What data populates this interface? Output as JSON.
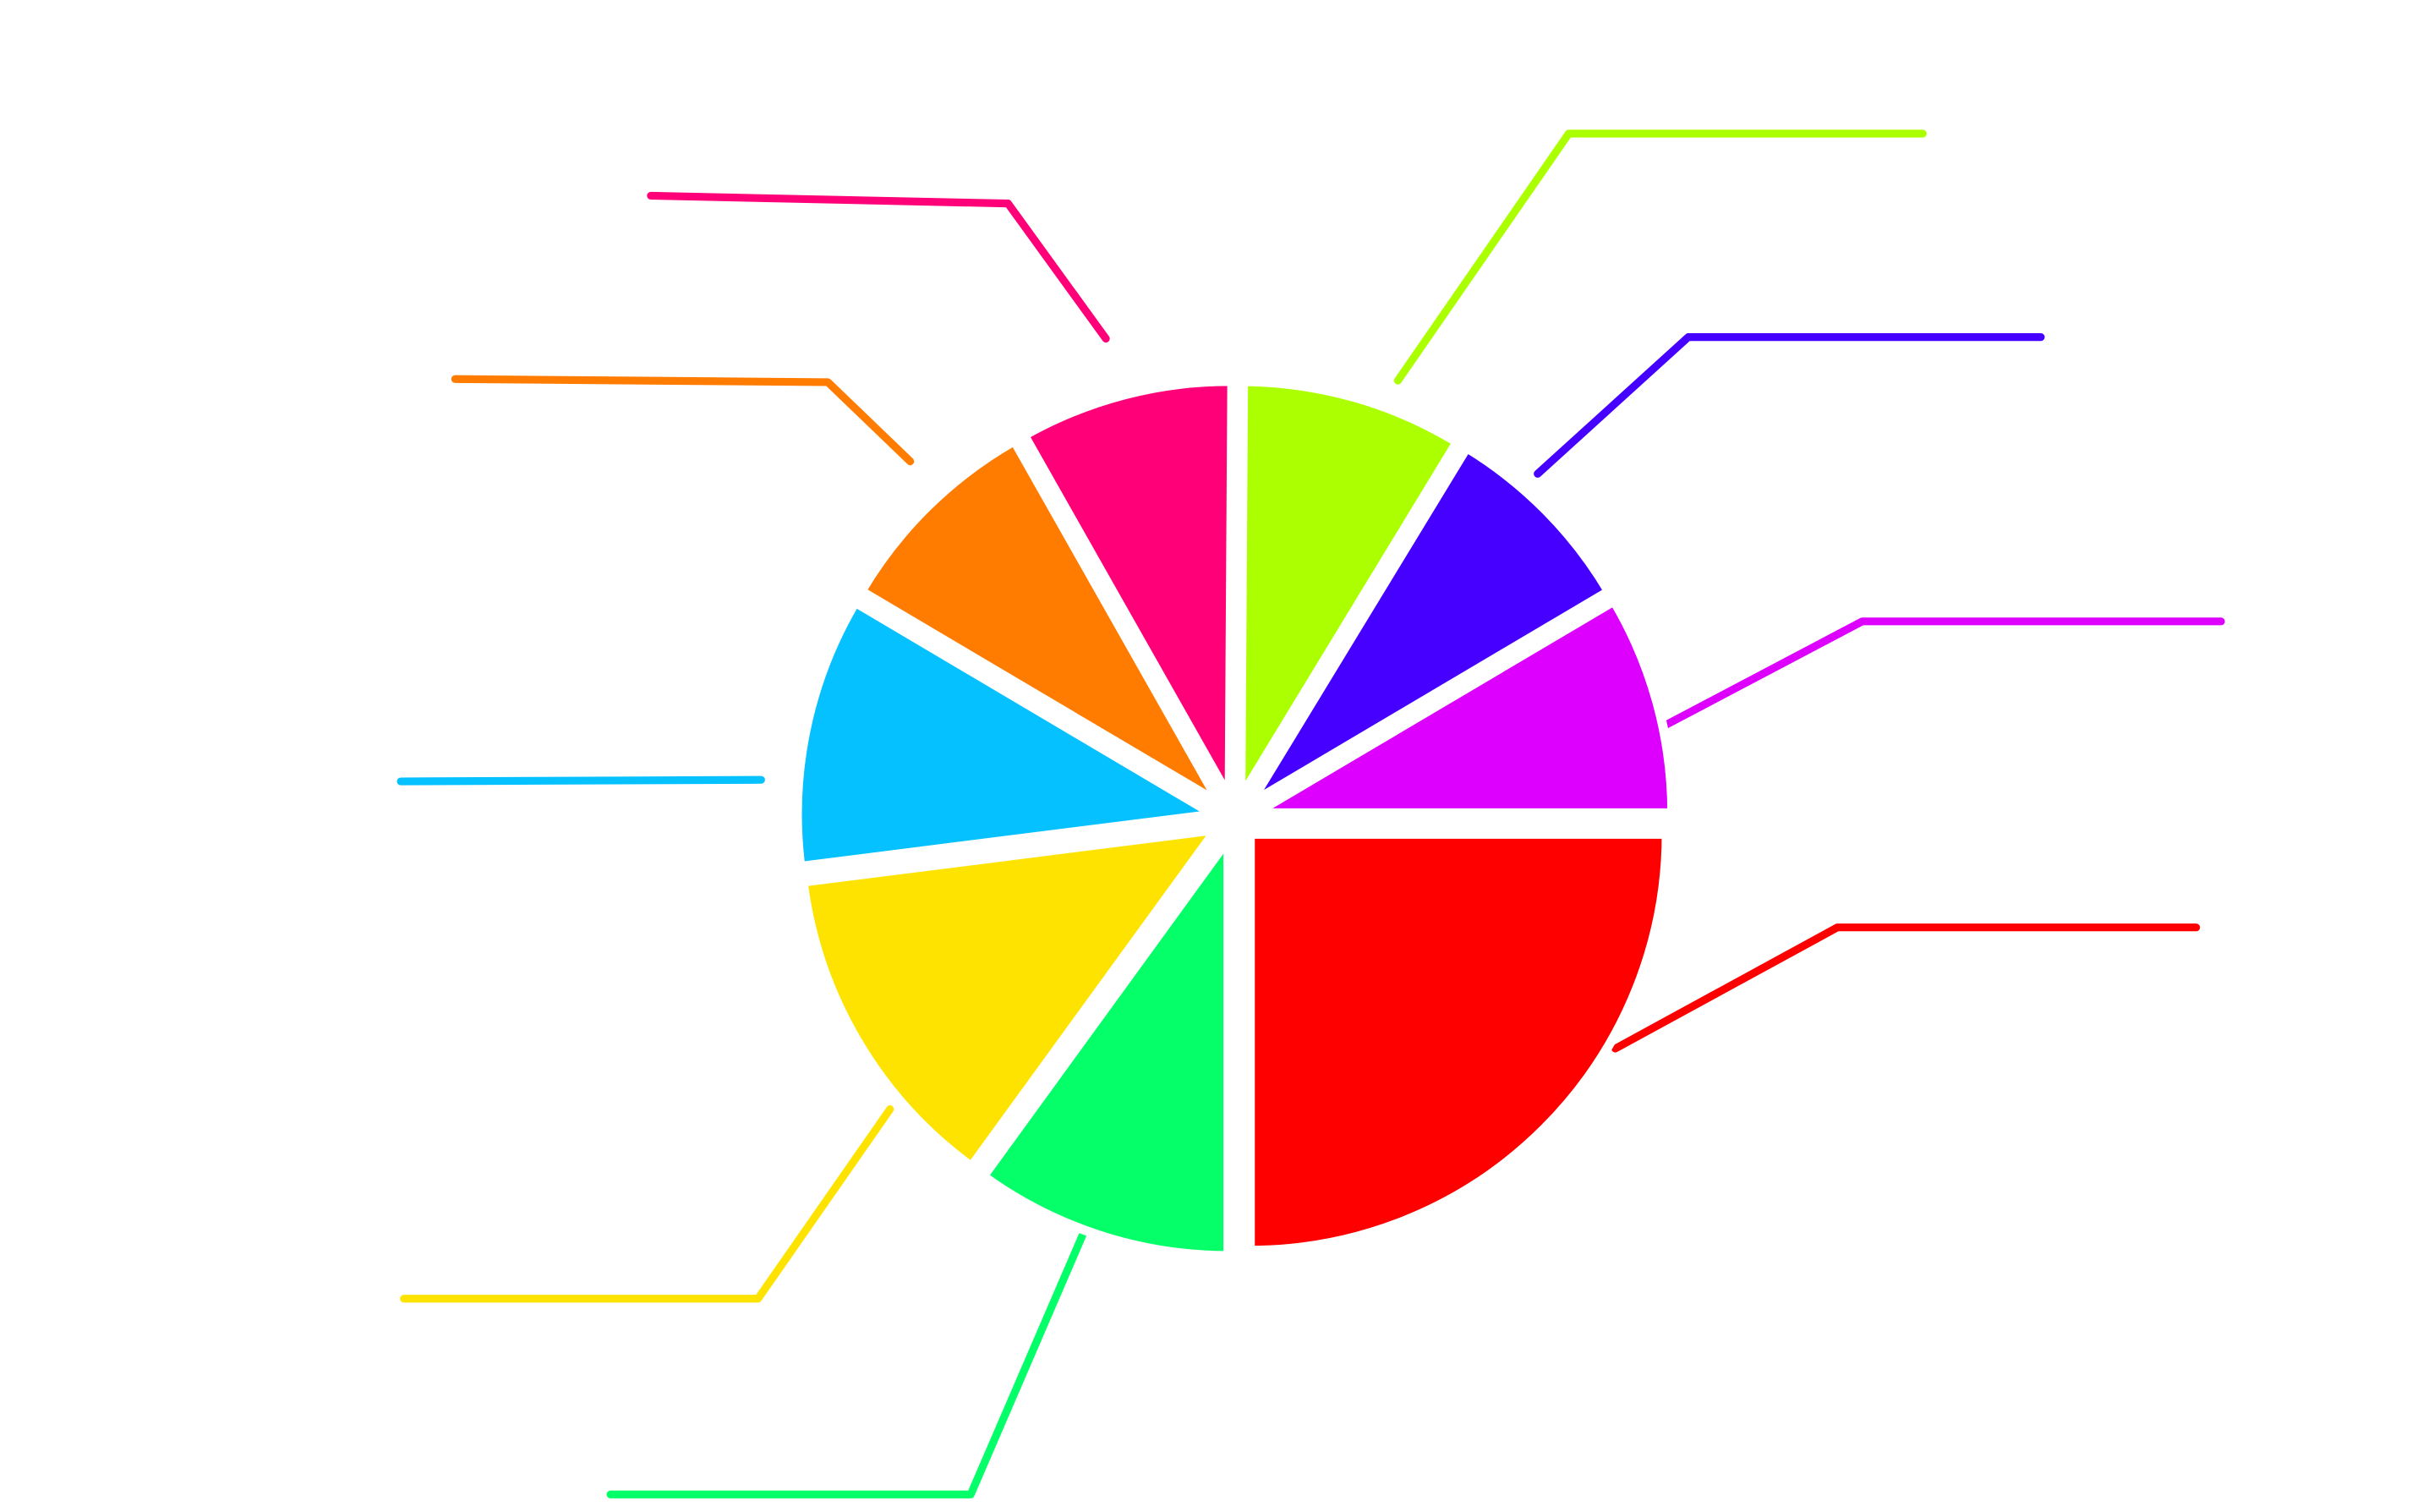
{
  "chart_data": {
    "type": "pie",
    "values": [
      25,
      10,
      13,
      10.5,
      8.3,
      8.3,
      8.6,
      7.8,
      8.5
    ],
    "colors": [
      "#ff0000",
      "#05ff69",
      "#ffe300",
      "#05c1ff",
      "#ff7c00",
      "#ff0079",
      "#acff00",
      "#4500ff",
      "#de00ff"
    ],
    "start_angle": 90,
    "direction": "clockwise",
    "exploded": true
  }
}
